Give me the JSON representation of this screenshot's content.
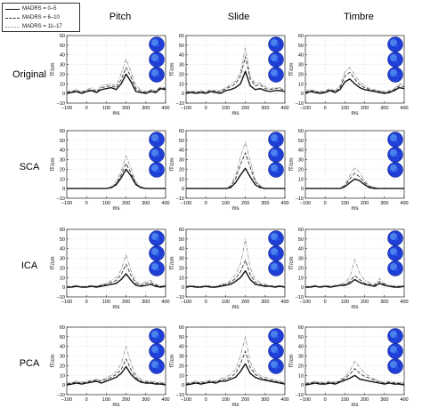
{
  "legend": {
    "items": [
      {
        "label": "MADRS = 0–5",
        "style": "solid",
        "color": "#111111"
      },
      {
        "label": "MADRS = 6–10",
        "style": "dashed",
        "color": "#333333"
      },
      {
        "label": "MADRS = 11–17",
        "style": "dashdot",
        "color": "#8a8a8a"
      }
    ]
  },
  "columns": [
    "Pitch",
    "Slide",
    "Timbre"
  ],
  "rows": [
    "Original",
    "SCA",
    "ICA",
    "PCA"
  ],
  "axes": {
    "ylabel": "fT/cm",
    "xlabel": "ms",
    "xlim": [
      -100,
      400
    ],
    "ylim": [
      -10,
      60
    ],
    "xticks": [
      -100,
      0,
      100,
      200,
      300,
      400
    ],
    "yticks": [
      -10,
      0,
      10,
      20,
      30,
      40,
      50,
      60
    ],
    "grid": true
  },
  "colors": {
    "topomap_blue": "#1f3fd6",
    "topomap_highlight": "#6fb8ff",
    "series1": "#111111",
    "series2": "#333333",
    "series3": "#8a8a8a"
  },
  "chart_data": {
    "type": "line",
    "x": [
      -100,
      -75,
      -50,
      -25,
      0,
      25,
      50,
      75,
      100,
      125,
      150,
      175,
      200,
      225,
      250,
      275,
      300,
      325,
      350,
      375,
      400
    ],
    "panels": [
      {
        "row": "Original",
        "column": "Pitch",
        "series": [
          {
            "name": "MADRS = 0–5",
            "values": [
              0,
              1,
              2,
              0,
              2,
              3,
              1,
              4,
              5,
              6,
              4,
              10,
              20,
              12,
              2,
              1,
              0,
              2,
              1,
              5,
              4
            ]
          },
          {
            "name": "MADRS = 6–10",
            "values": [
              1,
              2,
              3,
              1,
              3,
              4,
              2,
              6,
              7,
              8,
              6,
              14,
              27,
              17,
              5,
              2,
              1,
              3,
              2,
              6,
              5
            ]
          },
          {
            "name": "MADRS = 11–17",
            "values": [
              2,
              3,
              4,
              2,
              4,
              6,
              3,
              8,
              9,
              10,
              8,
              20,
              36,
              22,
              8,
              4,
              2,
              4,
              3,
              7,
              6
            ]
          }
        ]
      },
      {
        "row": "Original",
        "column": "Slide",
        "series": [
          {
            "name": "MADRS = 0–5",
            "values": [
              0,
              1,
              0,
              1,
              0,
              2,
              1,
              0,
              3,
              4,
              6,
              10,
              23,
              8,
              4,
              5,
              3,
              2,
              3,
              3,
              2
            ]
          },
          {
            "name": "MADRS = 6–10",
            "values": [
              1,
              2,
              1,
              2,
              1,
              3,
              2,
              2,
              5,
              7,
              10,
              18,
              38,
              15,
              8,
              9,
              5,
              4,
              5,
              5,
              3
            ]
          },
          {
            "name": "MADRS = 11–17",
            "values": [
              2,
              3,
              2,
              3,
              2,
              4,
              3,
              3,
              6,
              9,
              13,
              22,
              47,
              18,
              10,
              11,
              7,
              5,
              6,
              6,
              4
            ]
          }
        ]
      },
      {
        "row": "Original",
        "column": "Timbre",
        "series": [
          {
            "name": "MADRS = 0–5",
            "values": [
              0,
              2,
              1,
              0,
              1,
              3,
              1,
              4,
              12,
              15,
              10,
              6,
              4,
              3,
              2,
              1,
              0,
              1,
              3,
              6,
              5
            ]
          },
          {
            "name": "MADRS = 6–10",
            "values": [
              1,
              3,
              2,
              1,
              2,
              4,
              2,
              6,
              18,
              22,
              15,
              9,
              6,
              4,
              3,
              2,
              1,
              2,
              4,
              8,
              7
            ]
          },
          {
            "name": "MADRS = 11–17",
            "values": [
              2,
              4,
              3,
              2,
              3,
              5,
              3,
              8,
              22,
              27,
              19,
              12,
              8,
              5,
              4,
              3,
              2,
              3,
              5,
              10,
              9
            ]
          }
        ]
      },
      {
        "row": "SCA",
        "column": "Pitch",
        "series": [
          {
            "name": "MADRS = 0–5",
            "values": [
              0,
              0,
              0,
              0,
              0,
              0,
              0,
              0,
              0,
              1,
              4,
              11,
              20,
              13,
              4,
              1,
              0,
              0,
              0,
              0,
              0
            ]
          },
          {
            "name": "MADRS = 6–10",
            "values": [
              0,
              0,
              0,
              0,
              0,
              0,
              0,
              0,
              0,
              1,
              5,
              14,
              26,
              16,
              5,
              1,
              0,
              0,
              0,
              0,
              0
            ]
          },
          {
            "name": "MADRS = 11–17",
            "values": [
              0,
              0,
              0,
              0,
              0,
              0,
              0,
              0,
              0,
              2,
              7,
              18,
              34,
              21,
              7,
              2,
              0,
              0,
              0,
              0,
              0
            ]
          }
        ]
      },
      {
        "row": "SCA",
        "column": "Slide",
        "series": [
          {
            "name": "MADRS = 0–5",
            "values": [
              0,
              0,
              0,
              0,
              0,
              0,
              0,
              0,
              0,
              1,
              6,
              14,
              21,
              12,
              4,
              1,
              0,
              0,
              0,
              0,
              0
            ]
          },
          {
            "name": "MADRS = 6–10",
            "values": [
              0,
              0,
              0,
              0,
              0,
              0,
              0,
              0,
              0,
              2,
              10,
              25,
              37,
              22,
              7,
              2,
              0,
              0,
              0,
              0,
              0
            ]
          },
          {
            "name": "MADRS = 11–17",
            "values": [
              0,
              0,
              0,
              0,
              0,
              0,
              0,
              0,
              0,
              3,
              13,
              33,
              48,
              29,
              9,
              3,
              0,
              0,
              0,
              0,
              0
            ]
          }
        ]
      },
      {
        "row": "SCA",
        "column": "Timbre",
        "series": [
          {
            "name": "MADRS = 0–5",
            "values": [
              0,
              0,
              0,
              0,
              0,
              0,
              0,
              0,
              2,
              6,
              10,
              8,
              4,
              1,
              0,
              0,
              0,
              0,
              0,
              0,
              0
            ]
          },
          {
            "name": "MADRS = 6–10",
            "values": [
              0,
              0,
              0,
              0,
              0,
              0,
              0,
              0,
              3,
              10,
              16,
              12,
              6,
              2,
              1,
              0,
              0,
              0,
              0,
              0,
              0
            ]
          },
          {
            "name": "MADRS = 11–17",
            "values": [
              0,
              0,
              0,
              0,
              0,
              0,
              0,
              0,
              4,
              13,
              22,
              17,
              8,
              3,
              1,
              0,
              0,
              0,
              0,
              0,
              0
            ]
          }
        ]
      },
      {
        "row": "ICA",
        "column": "Pitch",
        "series": [
          {
            "name": "MADRS = 0–5",
            "values": [
              0,
              0,
              1,
              0,
              0,
              1,
              0,
              1,
              2,
              3,
              4,
              8,
              14,
              7,
              2,
              1,
              2,
              3,
              1,
              0,
              1
            ]
          },
          {
            "name": "MADRS = 6–10",
            "values": [
              0,
              1,
              1,
              0,
              1,
              1,
              1,
              2,
              3,
              5,
              7,
              13,
              24,
              12,
              4,
              2,
              4,
              5,
              2,
              1,
              1
            ]
          },
          {
            "name": "MADRS = 11–17",
            "values": [
              1,
              1,
              2,
              1,
              1,
              2,
              1,
              3,
              4,
              7,
              10,
              18,
              34,
              17,
              6,
              3,
              6,
              7,
              3,
              1,
              2
            ]
          }
        ]
      },
      {
        "row": "ICA",
        "column": "Slide",
        "series": [
          {
            "name": "MADRS = 0–5",
            "values": [
              0,
              1,
              0,
              0,
              1,
              0,
              0,
              1,
              2,
              3,
              6,
              10,
              17,
              8,
              3,
              2,
              1,
              1,
              0,
              1,
              0
            ]
          },
          {
            "name": "MADRS = 6–10",
            "values": [
              0,
              1,
              1,
              0,
              1,
              1,
              0,
              2,
              3,
              5,
              9,
              16,
              28,
              13,
              5,
              3,
              2,
              1,
              1,
              1,
              1
            ]
          },
          {
            "name": "MADRS = 11–17",
            "values": [
              1,
              2,
              1,
              1,
              2,
              1,
              1,
              3,
              4,
              7,
              13,
              24,
              50,
              20,
              8,
              5,
              3,
              2,
              1,
              2,
              1
            ]
          }
        ]
      },
      {
        "row": "ICA",
        "column": "Timbre",
        "series": [
          {
            "name": "MADRS = 0–5",
            "values": [
              0,
              0,
              1,
              0,
              1,
              0,
              1,
              2,
              2,
              4,
              8,
              5,
              3,
              2,
              1,
              4,
              2,
              1,
              0,
              0,
              1
            ]
          },
          {
            "name": "MADRS = 6–10",
            "values": [
              0,
              1,
              1,
              0,
              1,
              1,
              1,
              2,
              3,
              6,
              12,
              8,
              4,
              3,
              2,
              6,
              3,
              1,
              1,
              1,
              1
            ]
          },
          {
            "name": "MADRS = 11–17",
            "values": [
              1,
              1,
              2,
              1,
              2,
              1,
              2,
              3,
              5,
              10,
              29,
              14,
              7,
              5,
              3,
              9,
              4,
              2,
              1,
              1,
              2
            ]
          }
        ]
      },
      {
        "row": "PCA",
        "column": "Pitch",
        "series": [
          {
            "name": "MADRS = 0–5",
            "values": [
              0,
              1,
              2,
              1,
              2,
              3,
              4,
              2,
              4,
              6,
              8,
              12,
              19,
              11,
              6,
              3,
              2,
              2,
              1,
              1,
              0
            ]
          },
          {
            "name": "MADRS = 6–10",
            "values": [
              1,
              2,
              3,
              2,
              3,
              4,
              5,
              4,
              6,
              8,
              11,
              16,
              27,
              16,
              8,
              4,
              3,
              3,
              2,
              2,
              1
            ]
          },
          {
            "name": "MADRS = 11–17",
            "values": [
              2,
              3,
              4,
              3,
              4,
              5,
              6,
              5,
              8,
              10,
              14,
              22,
              40,
              22,
              11,
              6,
              4,
              4,
              3,
              3,
              2
            ]
          }
        ]
      },
      {
        "row": "PCA",
        "column": "Slide",
        "series": [
          {
            "name": "MADRS = 0–5",
            "values": [
              0,
              1,
              2,
              1,
              2,
              3,
              2,
              4,
              4,
              6,
              8,
              14,
              22,
              12,
              8,
              6,
              5,
              4,
              3,
              2,
              1
            ]
          },
          {
            "name": "MADRS = 6–10",
            "values": [
              1,
              2,
              3,
              2,
              3,
              4,
              3,
              5,
              6,
              8,
              12,
              22,
              35,
              18,
              11,
              8,
              6,
              5,
              4,
              3,
              2
            ]
          },
          {
            "name": "MADRS = 11–17",
            "values": [
              2,
              3,
              4,
              3,
              4,
              5,
              4,
              7,
              8,
              11,
              16,
              30,
              50,
              24,
              14,
              10,
              8,
              7,
              5,
              4,
              3
            ]
          }
        ]
      },
      {
        "row": "PCA",
        "column": "Timbre",
        "series": [
          {
            "name": "MADRS = 0–5",
            "values": [
              0,
              1,
              2,
              1,
              1,
              2,
              1,
              3,
              5,
              7,
              10,
              6,
              5,
              4,
              3,
              2,
              1,
              2,
              1,
              1,
              0
            ]
          },
          {
            "name": "MADRS = 6–10",
            "values": [
              1,
              2,
              3,
              2,
              2,
              3,
              2,
              4,
              7,
              11,
              17,
              12,
              9,
              7,
              5,
              3,
              2,
              3,
              2,
              2,
              1
            ]
          },
          {
            "name": "MADRS = 11–17",
            "values": [
              2,
              3,
              4,
              3,
              3,
              4,
              3,
              5,
              9,
              14,
              25,
              18,
              12,
              9,
              6,
              4,
              3,
              4,
              3,
              3,
              2
            ]
          }
        ]
      }
    ]
  }
}
